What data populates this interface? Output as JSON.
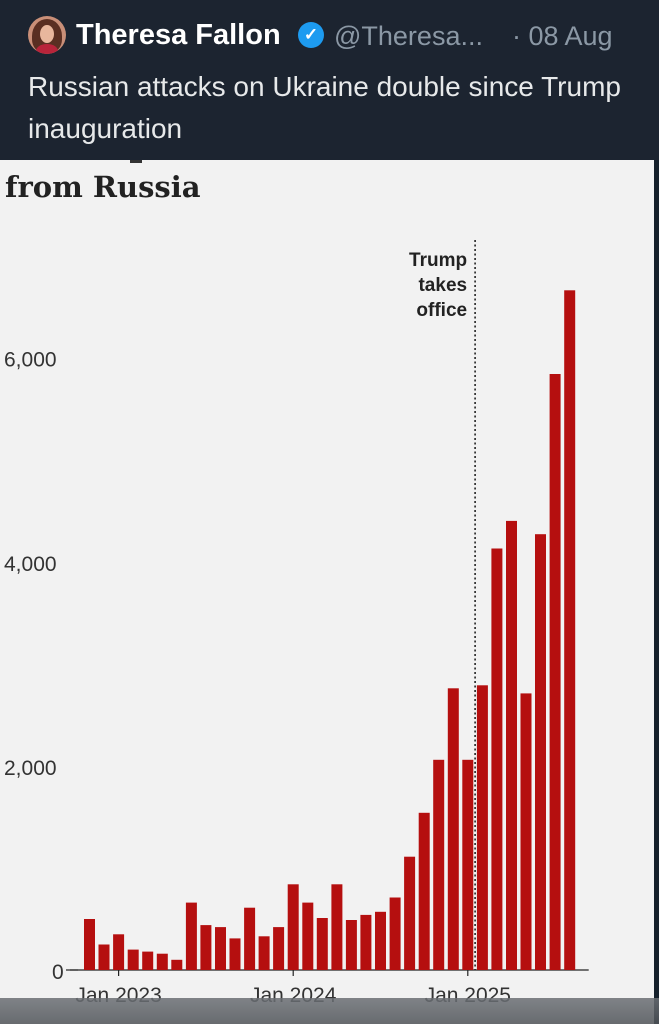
{
  "tweet": {
    "author": "Theresa Fallon",
    "handle": "@Theresa...",
    "date": "· 08 Aug",
    "text": "Russian attacks on Ukraine double since Trump inauguration",
    "verified_icon": "verified-badge-icon",
    "colors": {
      "background": "#1c2430",
      "name": "#ffffff",
      "meta": "#8b98a5",
      "verified": "#1d9bf0"
    }
  },
  "chart_data": {
    "type": "bar",
    "title": "from Russia",
    "annotation": [
      "Trump",
      "takes",
      "office"
    ],
    "x_tick_labels": [
      "Jan 2023",
      "Jan 2024",
      "Jan 2025"
    ],
    "y_tick_labels": [
      "0",
      "2,000",
      "4,000",
      "6,000"
    ],
    "y_ticks": [
      0,
      2000,
      4000,
      6000
    ],
    "ylim": [
      0,
      6800
    ],
    "bar_color": "#b50f0f",
    "grid": false,
    "values": [
      500,
      250,
      350,
      200,
      180,
      160,
      100,
      660,
      440,
      420,
      310,
      610,
      330,
      420,
      840,
      660,
      510,
      840,
      490,
      540,
      570,
      710,
      1110,
      1540,
      2060,
      2760,
      2060,
      2790,
      4130,
      4400,
      2710,
      4270,
      5840,
      6660
    ],
    "x_tick_indices": [
      2,
      14,
      26
    ],
    "marker_after_index": 26
  }
}
